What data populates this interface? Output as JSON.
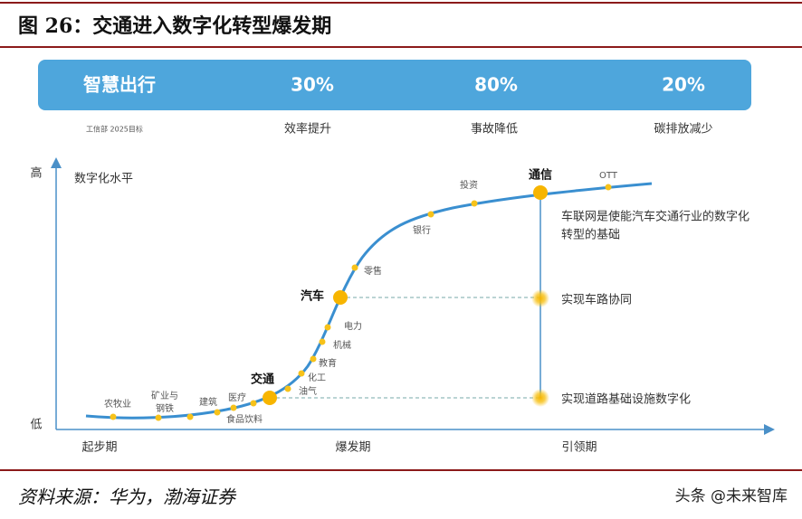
{
  "header": {
    "title": "图 26：交通进入数字化转型爆发期"
  },
  "banner": {
    "label": "智慧出行",
    "items": [
      "30%",
      "80%",
      "20%"
    ]
  },
  "goal_note": "工信部 2025目标",
  "goal_labels": [
    "效率提升",
    "事故降低",
    "碳排放减少"
  ],
  "axis": {
    "high": "高",
    "low": "低",
    "y_label": "数字化水平",
    "phases": [
      "起步期",
      "爆发期",
      "引领期"
    ]
  },
  "key_nodes": [
    "交通",
    "汽车",
    "通信"
  ],
  "industries": [
    "农牧业",
    "矿业与",
    "钢铁",
    "建筑",
    "医疗",
    "食品饮料",
    "油气",
    "化工",
    "教育",
    "机械",
    "电力",
    "零售",
    "银行",
    "投资",
    "OTT"
  ],
  "notes": [
    "车联网是使能汽车交通行业的数字化",
    "转型的基础",
    "实现车路协同",
    "实现道路基础设施数字化"
  ],
  "footer": {
    "source": "资料来源：华为，渤海证券",
    "watermark": "头条 @未来智库"
  }
}
